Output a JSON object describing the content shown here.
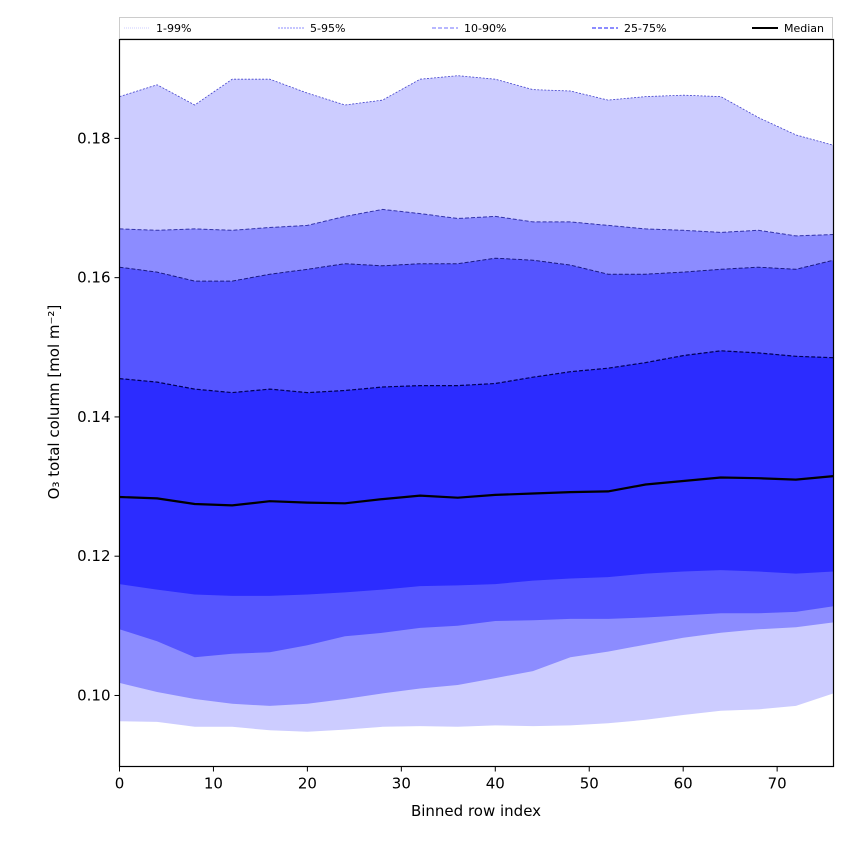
{
  "chart_data": {
    "type": "area",
    "title": "",
    "xlabel": "Binned row index",
    "ylabel": "O₃ total column [mol m⁻²]",
    "xlim": [
      0,
      76
    ],
    "ylim": [
      0.0898,
      0.1942
    ],
    "xticks": [
      0,
      10,
      20,
      30,
      40,
      50,
      60,
      70
    ],
    "xtick_labels": [
      "0",
      "10",
      "20",
      "30",
      "40",
      "50",
      "60",
      "70"
    ],
    "yticks": [
      0.1,
      0.12,
      0.14,
      0.16,
      0.18
    ],
    "ytick_labels": [
      "0.10",
      "0.12",
      "0.14",
      "0.16",
      "0.18"
    ],
    "grid": false,
    "legend_position": "top",
    "x": [
      0,
      4,
      8,
      12,
      16,
      20,
      24,
      28,
      32,
      36,
      40,
      44,
      48,
      52,
      56,
      60,
      64,
      68,
      72,
      76
    ],
    "bands": [
      {
        "name": "1-99%",
        "fill": "#ccccff",
        "line_color": "#4444cc",
        "lower": [
          0.0963,
          0.0962,
          0.0955,
          0.0955,
          0.095,
          0.0948,
          0.0951,
          0.0955,
          0.0956,
          0.0955,
          0.0957,
          0.0956,
          0.0957,
          0.096,
          0.0965,
          0.0972,
          0.0978,
          0.098,
          0.0985,
          0.1003
        ],
        "upper": [
          0.186,
          0.1877,
          0.1848,
          0.1885,
          0.1885,
          0.1865,
          0.1848,
          0.1855,
          0.1885,
          0.189,
          0.1885,
          0.187,
          0.1868,
          0.1855,
          0.186,
          0.1862,
          0.186,
          0.183,
          0.1805,
          0.179
        ]
      },
      {
        "name": "5-95%",
        "fill": "#8c8cff",
        "line_color": "#3333aa",
        "lower": [
          0.1018,
          0.1005,
          0.0995,
          0.0988,
          0.0985,
          0.0988,
          0.0995,
          0.1003,
          0.101,
          0.1015,
          0.1025,
          0.1035,
          0.1055,
          0.1063,
          0.1073,
          0.1083,
          0.109,
          0.1095,
          0.1098,
          0.1105
        ],
        "upper": [
          0.167,
          0.1668,
          0.167,
          0.1668,
          0.1672,
          0.1675,
          0.1688,
          0.1698,
          0.1692,
          0.1685,
          0.1688,
          0.168,
          0.168,
          0.1675,
          0.167,
          0.1668,
          0.1665,
          0.1668,
          0.166,
          0.1662
        ]
      },
      {
        "name": "10-90%",
        "fill": "#5555ff",
        "line_color": "#1a1a80",
        "lower": [
          0.1095,
          0.1078,
          0.1055,
          0.106,
          0.1062,
          0.1072,
          0.1085,
          0.109,
          0.1097,
          0.11,
          0.1107,
          0.1108,
          0.111,
          0.111,
          0.1112,
          0.1115,
          0.1118,
          0.1118,
          0.112,
          0.1128
        ],
        "upper": [
          0.1615,
          0.1608,
          0.1595,
          0.1595,
          0.1605,
          0.1612,
          0.162,
          0.1617,
          0.162,
          0.162,
          0.1628,
          0.1625,
          0.1618,
          0.1605,
          0.1605,
          0.1608,
          0.1612,
          0.1615,
          0.1612,
          0.1625
        ]
      },
      {
        "name": "25-75%",
        "fill": "#2c2cff",
        "line_color": "#000055",
        "lower": [
          0.116,
          0.1152,
          0.1145,
          0.1143,
          0.1143,
          0.1145,
          0.1148,
          0.1152,
          0.1157,
          0.1158,
          0.116,
          0.1165,
          0.1168,
          0.117,
          0.1175,
          0.1178,
          0.118,
          0.1178,
          0.1175,
          0.1178
        ],
        "upper": [
          0.1455,
          0.145,
          0.144,
          0.1435,
          0.144,
          0.1435,
          0.1438,
          0.1443,
          0.1445,
          0.1445,
          0.1448,
          0.1457,
          0.1465,
          0.147,
          0.1478,
          0.1488,
          0.1495,
          0.1492,
          0.1487,
          0.1485
        ]
      }
    ],
    "series": [
      {
        "name": "Median",
        "color": "#000000",
        "values": [
          0.1285,
          0.1283,
          0.1275,
          0.1273,
          0.1279,
          0.1277,
          0.1276,
          0.1282,
          0.1287,
          0.1284,
          0.1288,
          0.129,
          0.1292,
          0.1293,
          0.1303,
          0.1308,
          0.1313,
          0.1312,
          0.131,
          0.1315
        ]
      }
    ],
    "legend": [
      {
        "label": "1-99%",
        "style": "dotted",
        "color": "#ccccff"
      },
      {
        "label": "5-95%",
        "style": "dashed-thin",
        "color": "#8c8cff"
      },
      {
        "label": "10-90%",
        "style": "dashed",
        "color": "#8c8cff"
      },
      {
        "label": "25-75%",
        "style": "dashed",
        "color": "#5555ff"
      },
      {
        "label": "Median",
        "style": "solid",
        "color": "#000000"
      }
    ]
  }
}
